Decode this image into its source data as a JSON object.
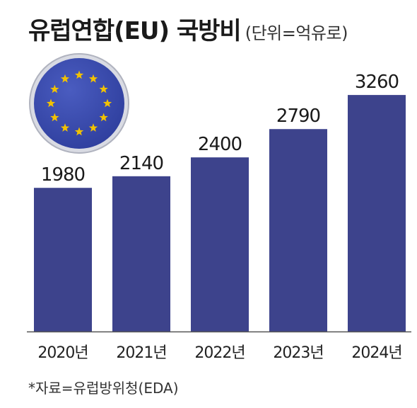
{
  "title": "유럽연합(EU) 국방비",
  "subtitle": "(단위=억유로)",
  "source": "*자료=유럽방위청(EDA)",
  "colors": {
    "bar": "#3d438c",
    "axis": "#555555",
    "flag_blue": "#2f3f9e",
    "flag_star": "#f2c200"
  },
  "chart_data": {
    "type": "bar",
    "title": "유럽연합(EU) 국방비",
    "unit": "(단위=억유로)",
    "categories": [
      "2020년",
      "2021년",
      "2022년",
      "2023년",
      "2024년"
    ],
    "values": [
      1980,
      2140,
      2400,
      2790,
      3260
    ],
    "value_labels": [
      "1980",
      "2140",
      "2400",
      "2790",
      "3260"
    ],
    "grid": false,
    "legend": "none"
  }
}
